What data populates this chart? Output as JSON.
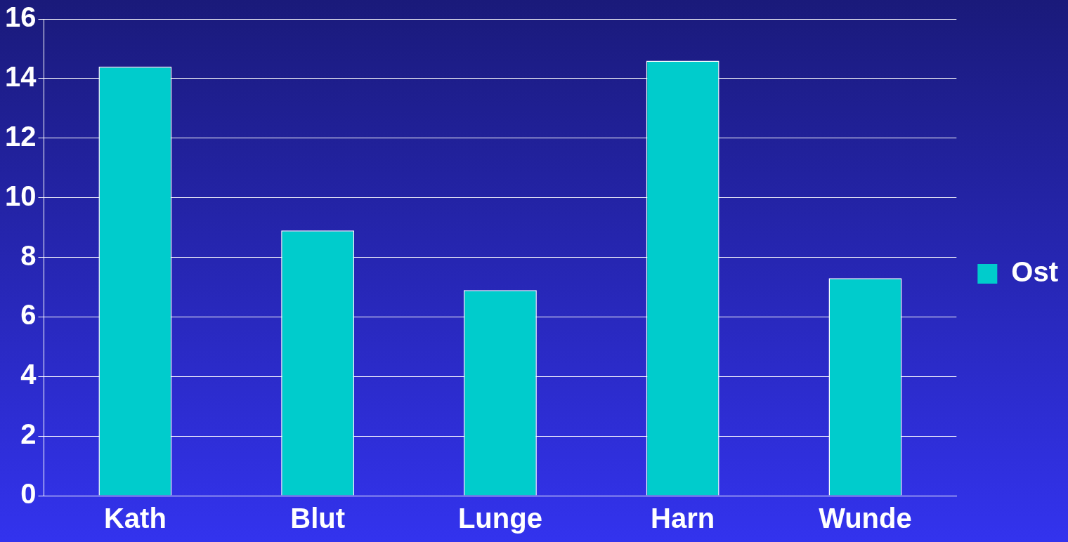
{
  "chart_data": {
    "type": "bar",
    "categories": [
      "Kath",
      "Blut",
      "Lunge",
      "Harn",
      "Wunde"
    ],
    "series": [
      {
        "name": "Ost",
        "color": "#00cccc",
        "values": [
          14.4,
          8.9,
          6.9,
          14.6,
          7.3
        ]
      }
    ],
    "ylim": [
      0,
      16
    ],
    "yticks": [
      0,
      2,
      4,
      6,
      8,
      10,
      12,
      14,
      16
    ],
    "grid": "y",
    "legend": "right"
  }
}
